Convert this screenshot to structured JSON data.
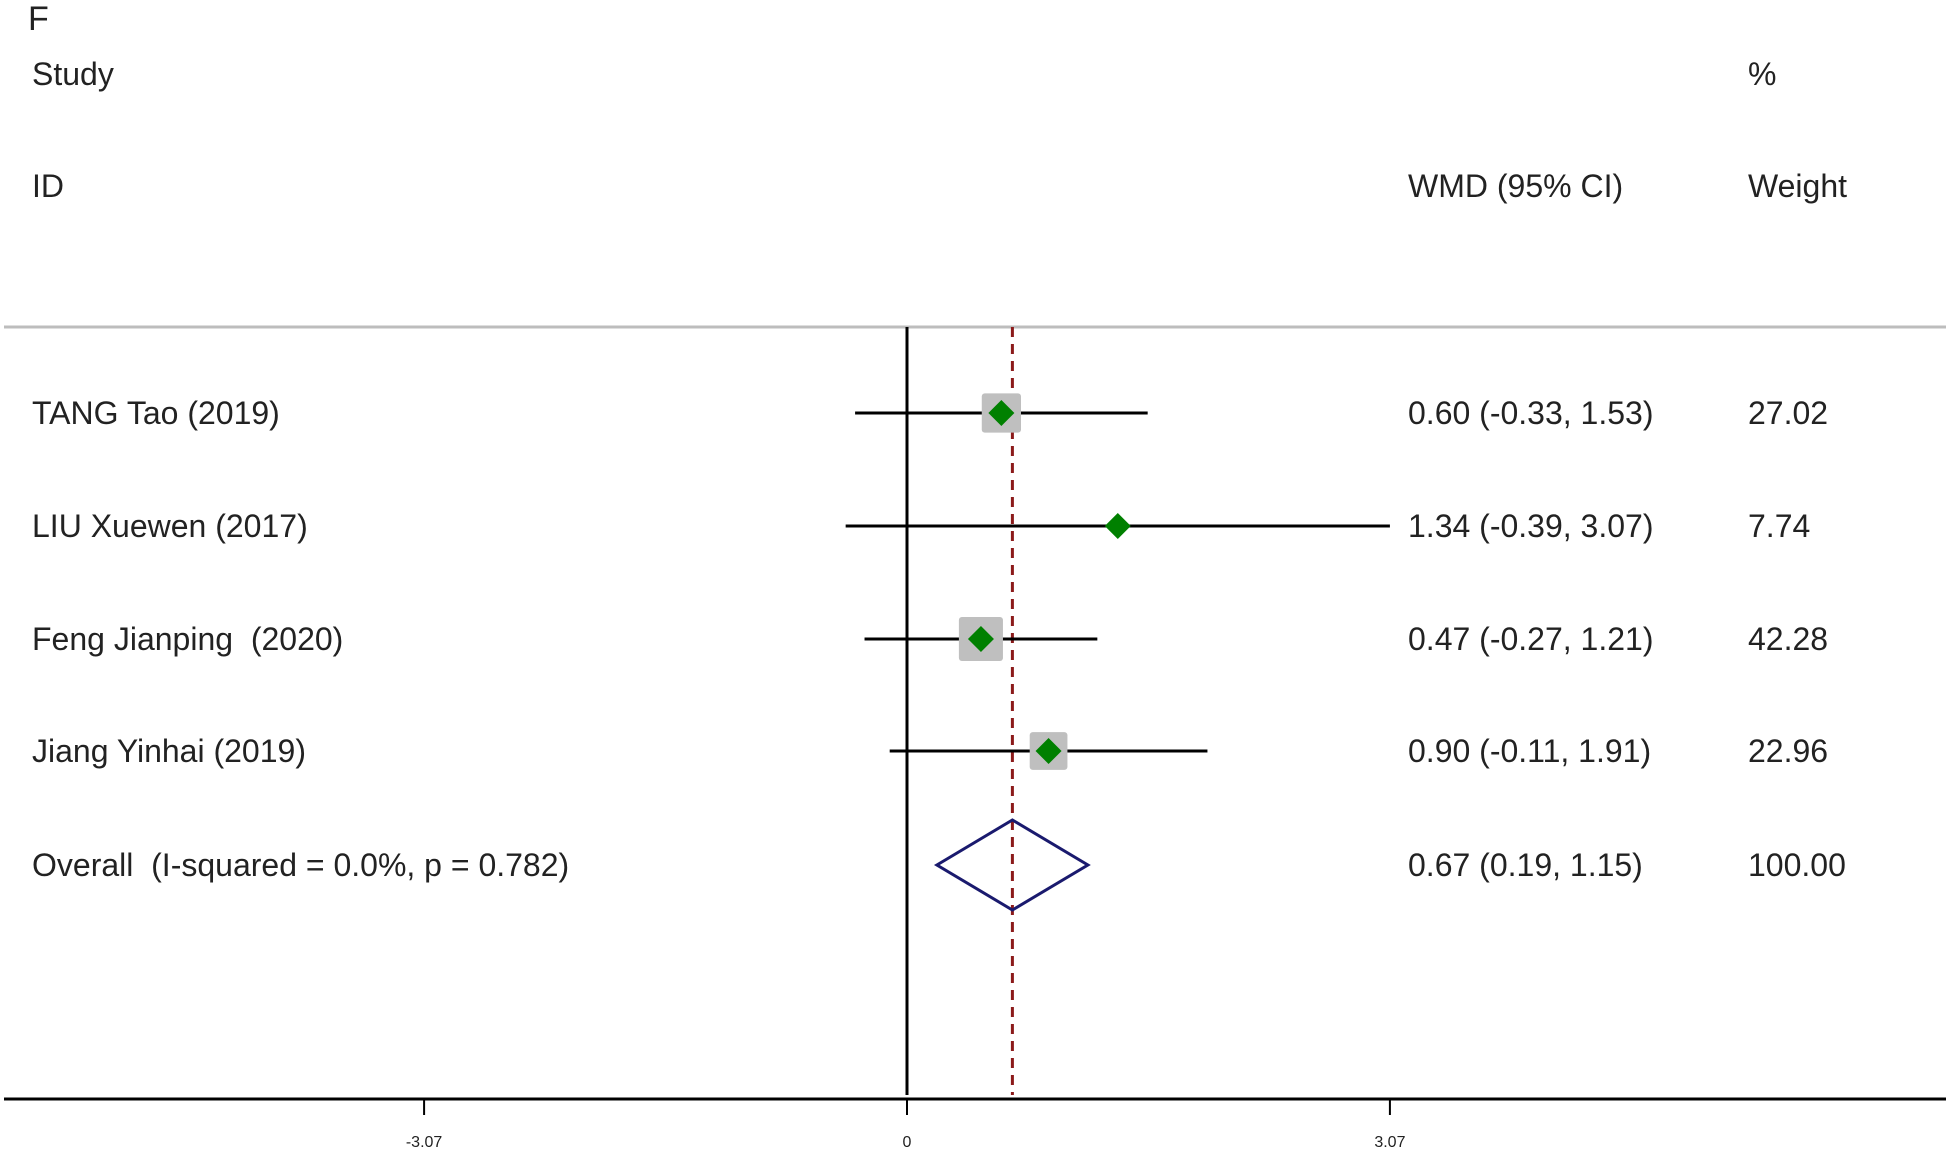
{
  "panel_label": "F",
  "headers": {
    "study_line1": "Study",
    "study_line2": "ID",
    "effect_label": "WMD (95% CI)",
    "weight_line1": "%",
    "weight_line2": "Weight"
  },
  "colors": {
    "study_marker": "#008000",
    "weight_box": "#bfbfbf",
    "overall_diamond": "#1a1a6e",
    "overall_line": "#8b1a1a",
    "axis": "#000000"
  },
  "chart_data": {
    "type": "forest",
    "xlim": [
      -4.71,
      10.06
    ],
    "x_ticks": [
      -3.07,
      0,
      3.07
    ],
    "x_tick_labels": [
      "-3.07",
      "0",
      "3.07"
    ],
    "null_line": 0,
    "studies": [
      {
        "label": "TANG Tao (2019)",
        "estimate": 0.6,
        "ci": [
          -0.33,
          1.53
        ],
        "ci_text": "0.60 (-0.33, 1.53)",
        "weight": 27.02,
        "weight_text": "27.02"
      },
      {
        "label": "LIU Xuewen (2017)",
        "estimate": 1.34,
        "ci": [
          -0.39,
          3.07
        ],
        "ci_text": "1.34 (-0.39, 3.07)",
        "weight": 7.74,
        "weight_text": "7.74"
      },
      {
        "label": "Feng Jianping  (2020)",
        "estimate": 0.47,
        "ci": [
          -0.27,
          1.21
        ],
        "ci_text": "0.47 (-0.27, 1.21)",
        "weight": 42.28,
        "weight_text": "42.28"
      },
      {
        "label": "Jiang Yinhai (2019)",
        "estimate": 0.9,
        "ci": [
          -0.11,
          1.91
        ],
        "ci_text": "0.90 (-0.11, 1.91)",
        "weight": 22.96,
        "weight_text": "22.96"
      }
    ],
    "overall": {
      "label": "Overall  (I-squared = 0.0%, p = 0.782)",
      "estimate": 0.67,
      "ci": [
        0.19,
        1.15
      ],
      "ci_text": "0.67 (0.19, 1.15)",
      "weight": 100.0,
      "weight_text": "100.00"
    }
  }
}
